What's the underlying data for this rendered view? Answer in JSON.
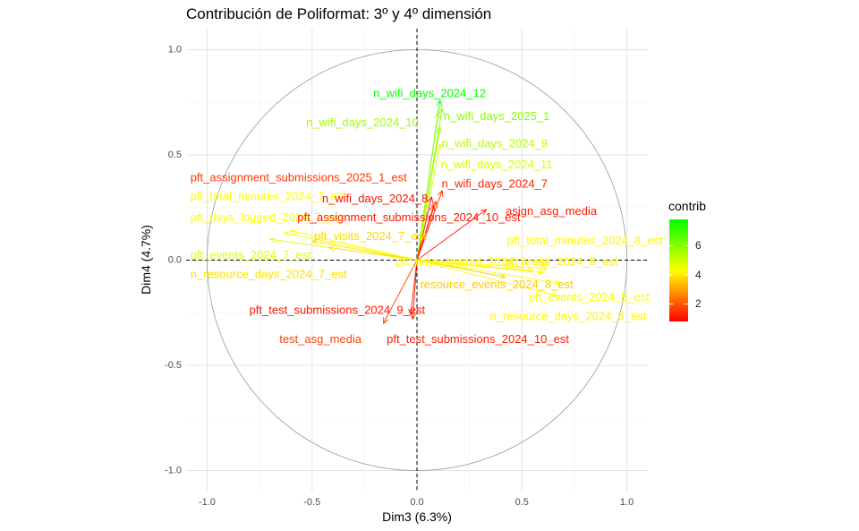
{
  "chart_data": {
    "type": "scatter",
    "subtype": "pca-variable-correlation-circle",
    "title": "Contribución de Poliformat: 3º y 4º dimensión",
    "xlabel": "Dim3 (6.3%)",
    "ylabel": "Dim4 (4.7%)",
    "xlim": [
      -1.1,
      1.1
    ],
    "ylim": [
      -1.1,
      1.1
    ],
    "x_ticks": [
      {
        "value": -1.0,
        "label": "-1.0"
      },
      {
        "value": -0.5,
        "label": "-0.5"
      },
      {
        "value": 0.0,
        "label": "0.0"
      },
      {
        "value": 0.5,
        "label": "0.5"
      },
      {
        "value": 1.0,
        "label": "1.0"
      }
    ],
    "y_ticks": [
      {
        "value": -1.0,
        "label": "-1.0"
      },
      {
        "value": -0.5,
        "label": "-0.5"
      },
      {
        "value": 0.0,
        "label": "0.0"
      },
      {
        "value": 0.5,
        "label": "0.5"
      },
      {
        "value": 1.0,
        "label": "1.0"
      }
    ],
    "grid": true,
    "unit_circle": true,
    "reference_lines": {
      "x": 0,
      "y": 0,
      "style": "dashed"
    },
    "legend": {
      "title": "contrib",
      "type": "colorbar",
      "placement": "right",
      "range": [
        0.8,
        7.8
      ],
      "breaks": [
        {
          "value": 2,
          "label": "2"
        },
        {
          "value": 4,
          "label": "4"
        },
        {
          "value": 6,
          "label": "6"
        }
      ],
      "colors": [
        "#ff0000",
        "#ffff00",
        "#00ff00"
      ]
    },
    "variables": [
      {
        "label": "n_wifi_days_2024_12",
        "x": 0.11,
        "y": 0.76,
        "contrib": 7.7
      },
      {
        "label": "n_wifi_days_2025_1",
        "x": 0.12,
        "y": 0.72,
        "contrib": 5.9
      },
      {
        "label": "n_wifi_days_2024_10",
        "x": 0.1,
        "y": 0.7,
        "contrib": 5.6
      },
      {
        "label": "n_wifi_days_2024_9",
        "x": 0.11,
        "y": 0.63,
        "contrib": 5.3
      },
      {
        "label": "n_wifi_days_2024_11",
        "x": 0.11,
        "y": 0.55,
        "contrib": 4.8
      },
      {
        "label": "n_wifi_days_2024_7",
        "x": 0.12,
        "y": 0.33,
        "contrib": 1.3
      },
      {
        "label": "n_wifi_days_2024_8",
        "x": 0.07,
        "y": 0.3,
        "contrib": 1.0
      },
      {
        "label": "pft_assignment_submissions_2025_1_est",
        "x": 0.09,
        "y": 0.28,
        "contrib": 1.6
      },
      {
        "label": "pft_assignment_submissions_2024_10_est",
        "x": 0.08,
        "y": 0.26,
        "contrib": 1.1
      },
      {
        "label": "asign_asg_media",
        "x": 0.33,
        "y": 0.24,
        "contrib": 1.2
      },
      {
        "label": "pft_total_minutes_2024_7_est",
        "x": -0.6,
        "y": 0.14,
        "contrib": 4.3
      },
      {
        "label": "pft_days_logged_2024_7_est",
        "x": -0.63,
        "y": 0.13,
        "contrib": 4.3
      },
      {
        "label": "pft_visits_2024_7_est",
        "x": -0.5,
        "y": 0.09,
        "contrib": 3.8
      },
      {
        "label": "pft_events_2024_7_est",
        "x": -0.7,
        "y": 0.1,
        "contrib": 4.7
      },
      {
        "label": "n_resource_days_2024_7_est",
        "x": -0.42,
        "y": 0.06,
        "contrib": 3.9
      },
      {
        "label": "pft_total_minutes_2024_8_est",
        "x": 0.62,
        "y": -0.04,
        "contrib": 4.2
      },
      {
        "label": "pft_days_logged_2024_8_est",
        "x": 0.6,
        "y": -0.06,
        "contrib": 4.3
      },
      {
        "label": "pft_visits_2024_8_est",
        "x": 0.55,
        "y": -0.05,
        "contrib": 4.1
      },
      {
        "label": "resource_events_2024_8_est",
        "x": 0.42,
        "y": -0.08,
        "contrib": 3.6
      },
      {
        "label": "pft_events_2024_8_est",
        "x": 0.68,
        "y": -0.11,
        "contrib": 4.4
      },
      {
        "label": "n_resource_days_2024_8_est",
        "x": 0.67,
        "y": -0.17,
        "contrib": 4.2
      },
      {
        "label": "pft_test_submissions_2024_9_est",
        "x": -0.03,
        "y": -0.26,
        "contrib": 1.1
      },
      {
        "label": "pft_test_submissions_2024_10_est",
        "x": -0.02,
        "y": -0.28,
        "contrib": 1.2
      },
      {
        "label": "test_asg_media",
        "x": -0.16,
        "y": -0.3,
        "contrib": 1.7
      }
    ],
    "labels_shown": [
      {
        "text": "n_wifi_days_2024_12",
        "x": 0.06,
        "y": 0.79,
        "anchor": "middle",
        "contrib": 7.7
      },
      {
        "text": "n_wifi_days_2025_1",
        "x": 0.38,
        "y": 0.68,
        "anchor": "middle",
        "contrib": 5.9
      },
      {
        "text": "n_wifi_days_2024_10",
        "x": -0.26,
        "y": 0.65,
        "anchor": "middle",
        "contrib": 5.6
      },
      {
        "text": "n_wifi_days_2024_9",
        "x": 0.37,
        "y": 0.55,
        "anchor": "middle",
        "contrib": 5.3
      },
      {
        "text": "n_wifi_days_2024_11",
        "x": 0.38,
        "y": 0.45,
        "anchor": "middle",
        "contrib": 4.8
      },
      {
        "text": "pft_assignment_submissions_2025_1_est",
        "x": -1.08,
        "y": 0.39,
        "anchor": "start",
        "contrib": 1.6
      },
      {
        "text": "n_wifi_days_2024_7",
        "x": 0.37,
        "y": 0.36,
        "anchor": "middle",
        "contrib": 1.3
      },
      {
        "text": "pft_total_minutes_2024_7_est",
        "x": -1.08,
        "y": 0.3,
        "anchor": "start",
        "contrib": 4.3
      },
      {
        "text": "n_wifi_days_2024_8",
        "x": -0.2,
        "y": 0.29,
        "anchor": "middle",
        "contrib": 1.0
      },
      {
        "text": "asign_asg_media",
        "x": 0.64,
        "y": 0.23,
        "anchor": "middle",
        "contrib": 1.2
      },
      {
        "text": "pft_days_logged_2024_7_est",
        "x": -1.08,
        "y": 0.2,
        "anchor": "start",
        "contrib": 4.3
      },
      {
        "text": "pft_assignment_submissions_2024_10_est",
        "x": -0.57,
        "y": 0.2,
        "anchor": "start",
        "contrib": 1.1
      },
      {
        "text": "pft_visits_2024_7_est",
        "x": -0.49,
        "y": 0.11,
        "anchor": "start",
        "contrib": 3.8
      },
      {
        "text": "pft_total_minutes_2024_8_est",
        "x": 0.8,
        "y": 0.09,
        "anchor": "middle",
        "contrib": 4.2
      },
      {
        "text": "pft_events_2024_7_est",
        "x": -1.08,
        "y": 0.02,
        "anchor": "start",
        "contrib": 4.7
      },
      {
        "text": "pft_days_logged_2024_8_est",
        "x": -0.1,
        "y": -0.01,
        "anchor": "start",
        "contrib": 4.3
      },
      {
        "text": "pft_visits_2024_8_est",
        "x": 0.42,
        "y": -0.01,
        "anchor": "start",
        "contrib": 4.1
      },
      {
        "text": "n_resource_days_2024_7_est",
        "x": -1.08,
        "y": -0.07,
        "anchor": "start",
        "contrib": 3.9
      },
      {
        "text": "resource_events_2024_8_est",
        "x": 0.38,
        "y": -0.12,
        "anchor": "middle",
        "contrib": 3.6
      },
      {
        "text": "pft_events_2024_8_est",
        "x": 0.82,
        "y": -0.18,
        "anchor": "middle",
        "contrib": 4.4
      },
      {
        "text": "pft_test_submissions_2024_9_est",
        "x": -0.38,
        "y": -0.24,
        "anchor": "middle",
        "contrib": 1.1
      },
      {
        "text": "n_resource_days_2024_8_est",
        "x": 0.72,
        "y": -0.27,
        "anchor": "middle",
        "contrib": 4.2
      },
      {
        "text": "test_asg_media",
        "x": -0.46,
        "y": -0.38,
        "anchor": "middle",
        "contrib": 1.7
      },
      {
        "text": "pft_test_submissions_2024_10_est",
        "x": 0.29,
        "y": -0.38,
        "anchor": "middle",
        "contrib": 1.2
      }
    ]
  }
}
